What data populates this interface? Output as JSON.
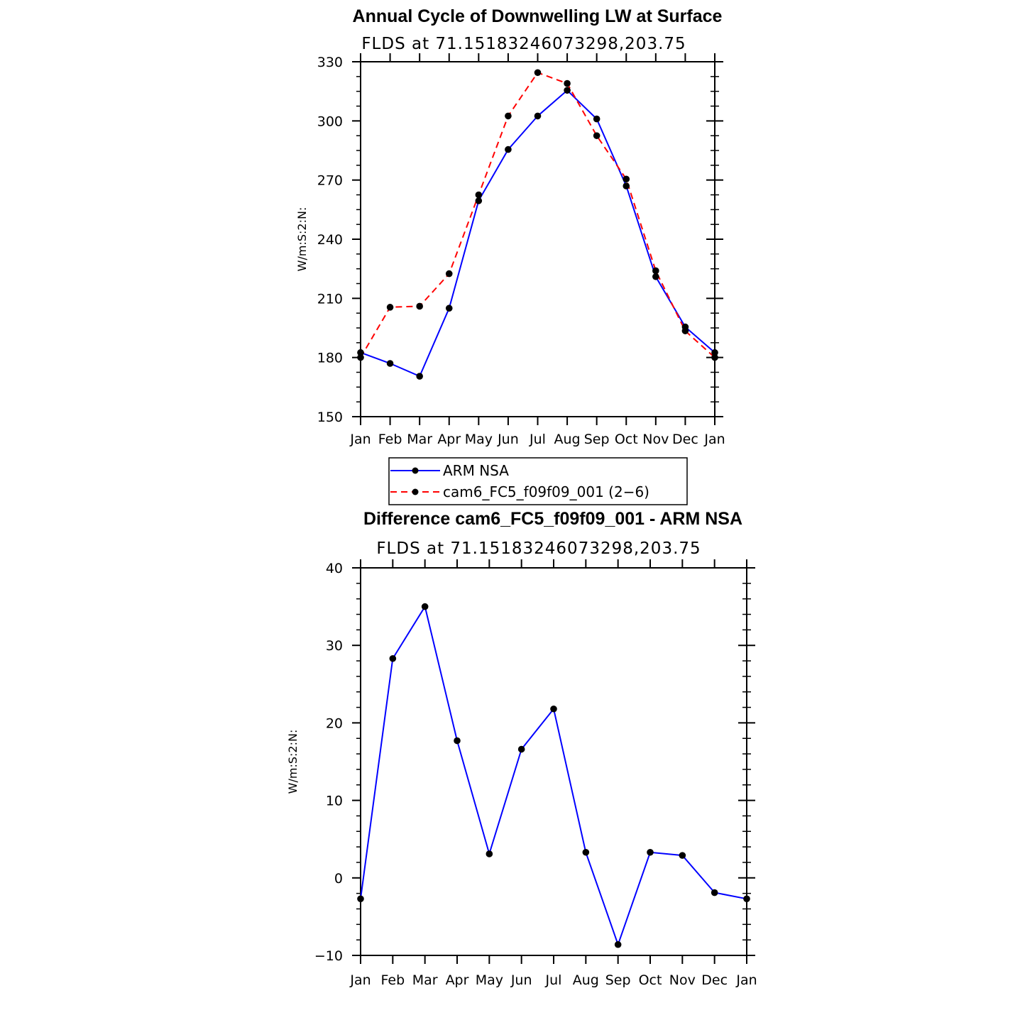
{
  "chart_data": [
    {
      "type": "line",
      "title": "Annual Cycle of Downwelling LW at Surface",
      "subtitle": "FLDS at 71.15183246073298,203.75",
      "ylabel": "W/m:S:2:N:",
      "xlabel": "",
      "categories": [
        "Jan",
        "Feb",
        "Mar",
        "Apr",
        "May",
        "Jun",
        "Jul",
        "Aug",
        "Sep",
        "Oct",
        "Nov",
        "Dec",
        "Jan"
      ],
      "yticks": [
        150,
        180,
        210,
        240,
        270,
        300,
        330
      ],
      "ytick_labels": [
        "150",
        "180",
        "210",
        "240",
        "270",
        "300",
        "330"
      ],
      "ylim": [
        150,
        330
      ],
      "grid": false,
      "series": [
        {
          "name": "ARM NSA",
          "color": "#0000ff",
          "dash": "solid",
          "values": [
            182.5,
            177,
            170.5,
            205,
            259.5,
            285.5,
            302.5,
            315.5,
            301,
            267,
            221,
            195.5,
            182.5
          ]
        },
        {
          "name": "cam6_FC5_f09f09_001 (2−6)",
          "color": "#ff0000",
          "dash": "dashed",
          "values": [
            180,
            205.5,
            206,
            222.5,
            262.5,
            302.5,
            324.5,
            319,
            292.5,
            270.5,
            224,
            193.5,
            180
          ]
        }
      ],
      "legend": "below"
    },
    {
      "type": "line",
      "title": "Difference cam6_FC5_f09f09_001 - ARM NSA",
      "subtitle": "FLDS at 71.15183246073298,203.75",
      "ylabel": "W/m:S:2:N:",
      "xlabel": "",
      "categories": [
        "Jan",
        "Feb",
        "Mar",
        "Apr",
        "May",
        "Jun",
        "Jul",
        "Aug",
        "Sep",
        "Oct",
        "Nov",
        "Dec",
        "Jan"
      ],
      "yticks": [
        -10,
        0,
        10,
        20,
        30,
        40
      ],
      "ytick_labels": [
        "−10",
        "0",
        "10",
        "20",
        "30",
        "40"
      ],
      "ylim": [
        -10,
        40
      ],
      "grid": false,
      "series": [
        {
          "color": "#0000ff",
          "dash": "solid",
          "values": [
            -2.7,
            28.3,
            35,
            17.7,
            3.1,
            16.6,
            21.8,
            3.3,
            -8.6,
            3.3,
            2.9,
            -1.9,
            -2.7
          ]
        }
      ]
    }
  ]
}
